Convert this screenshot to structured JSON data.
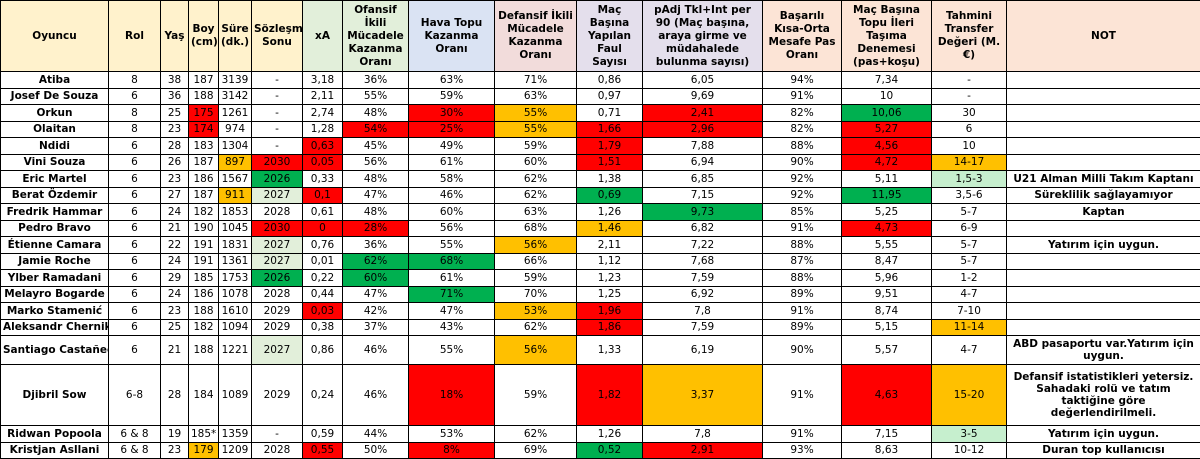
{
  "headers": [
    {
      "label": "Oyuncu",
      "bg": "#fff2cc"
    },
    {
      "label": "Rol",
      "bg": "#fff2cc"
    },
    {
      "label": "Yaş",
      "bg": "#fff2cc"
    },
    {
      "label": "Boy (cm)",
      "bg": "#fff2cc"
    },
    {
      "label": "Süre (dk.)",
      "bg": "#fff2cc"
    },
    {
      "label": "Sözleşme Sonu",
      "bg": "#fff2cc"
    },
    {
      "label": "xA",
      "bg": "#e2efda"
    },
    {
      "label": "Ofansif İkili Mücadele Kazanma Oranı",
      "bg": "#e2efda"
    },
    {
      "label": "Hava Topu Kazanma Oranı",
      "bg": "#dae3f3"
    },
    {
      "label": "Defansif İkili Mücadele Kazanma Oranı",
      "bg": "#f2dcdb"
    },
    {
      "label": "Maç Başına Yapılan Faul Sayısı",
      "bg": "#e4dfec"
    },
    {
      "label": "pAdj Tkl+Int per 90 (Maç başına, araya girme ve müdahalede bulunma sayısı)",
      "bg": "#e4dfec"
    },
    {
      "label": "Başarılı Kısa-Orta Mesafe Pas Oranı",
      "bg": "#fce4d6"
    },
    {
      "label": "Maç Başına Topu İleri Taşıma Denemesi (pas+koşu)",
      "bg": "#fce4d6"
    },
    {
      "label": "Tahmini Transfer Değeri (M. €)",
      "bg": "#fce4d6"
    },
    {
      "label": "NOT",
      "bg": "#fce4d6"
    }
  ],
  "rows": [
    {
      "h": "n",
      "cells": [
        "Atiba",
        "8",
        "38",
        "187",
        "3139",
        "-",
        "3,18",
        "36%",
        "63%",
        "71%",
        "0,86",
        "6,05",
        "94%",
        "7,34",
        "-",
        ""
      ],
      "cls": [
        "",
        "",
        "",
        "",
        "",
        "",
        "",
        "",
        "",
        "",
        "",
        "",
        "",
        "",
        "",
        ""
      ]
    },
    {
      "h": "n",
      "cells": [
        "Josef De Souza",
        "6",
        "36",
        "188",
        "3142",
        "-",
        "2,11",
        "55%",
        "59%",
        "63%",
        "0,97",
        "9,69",
        "91%",
        "10",
        "-",
        ""
      ],
      "cls": [
        "",
        "",
        "",
        "",
        "",
        "",
        "",
        "",
        "",
        "",
        "",
        "",
        "",
        "",
        "",
        ""
      ]
    },
    {
      "h": "n",
      "cells": [
        "Orkun",
        "8",
        "25",
        "175",
        "1261",
        "-",
        "2,74",
        "48%",
        "30%",
        "55%",
        "0,71",
        "2,41",
        "82%",
        "10,06",
        "30",
        ""
      ],
      "cls": [
        "",
        "",
        "",
        "r",
        "",
        "",
        "",
        "",
        "r",
        "o",
        "",
        "r",
        "",
        "g",
        "",
        ""
      ]
    },
    {
      "h": "n",
      "cells": [
        "Olaitan",
        "8",
        "23",
        "174",
        "974",
        "-",
        "1,28",
        "54%",
        "25%",
        "55%",
        "1,66",
        "2,96",
        "82%",
        "5,27",
        "6",
        ""
      ],
      "cls": [
        "",
        "",
        "",
        "r",
        "",
        "",
        "",
        "r",
        "r",
        "o",
        "r",
        "r",
        "",
        "r",
        "",
        ""
      ]
    },
    {
      "h": "n",
      "cells": [
        "Ndidi",
        "6",
        "28",
        "183",
        "1304",
        "-",
        "0,63",
        "45%",
        "49%",
        "59%",
        "1,79",
        "7,88",
        "88%",
        "4,56",
        "10",
        ""
      ],
      "cls": [
        "",
        "",
        "",
        "",
        "",
        "",
        "r",
        "",
        "",
        "",
        "r",
        "",
        "",
        "r",
        "",
        ""
      ]
    },
    {
      "h": "n",
      "cells": [
        "Vini Souza",
        "6",
        "26",
        "187",
        "897",
        "2030",
        "0,05",
        "56%",
        "61%",
        "60%",
        "1,51",
        "6,94",
        "90%",
        "4,72",
        "14-17",
        ""
      ],
      "cls": [
        "",
        "",
        "",
        "",
        "o",
        "r",
        "r",
        "",
        "",
        "",
        "r",
        "",
        "",
        "r",
        "o",
        ""
      ]
    },
    {
      "h": "n",
      "cells": [
        "Eric Martel",
        "6",
        "23",
        "186",
        "1567",
        "2026",
        "0,33",
        "48%",
        "58%",
        "62%",
        "1,38",
        "6,85",
        "92%",
        "5,11",
        "1,5-3",
        "U21 Alman Milli Takım Kaptanı"
      ],
      "cls": [
        "",
        "",
        "",
        "",
        "",
        "g",
        "",
        "",
        "",
        "",
        "",
        "",
        "",
        "",
        "lg",
        ""
      ]
    },
    {
      "h": "n",
      "cells": [
        "Berat Özdemir",
        "6",
        "27",
        "187",
        "911",
        "2027",
        "0,1",
        "47%",
        "46%",
        "62%",
        "0,69",
        "7,15",
        "92%",
        "11,95",
        "3,5-6",
        "Süreklilik sağlayamıyor"
      ],
      "cls": [
        "",
        "",
        "",
        "",
        "o",
        "gy",
        "r",
        "",
        "",
        "",
        "g",
        "",
        "",
        "g",
        "",
        ""
      ]
    },
    {
      "h": "n",
      "cells": [
        "Fredrik Hammar",
        "6",
        "24",
        "182",
        "1853",
        "2028",
        "0,61",
        "48%",
        "60%",
        "63%",
        "1,26",
        "9,73",
        "85%",
        "5,25",
        "5-7",
        "Kaptan"
      ],
      "cls": [
        "",
        "",
        "",
        "",
        "",
        "",
        "",
        "",
        "",
        "",
        "",
        "g",
        "",
        "",
        "",
        ""
      ]
    },
    {
      "h": "n",
      "cells": [
        "Pedro Bravo",
        "6",
        "21",
        "190",
        "1045",
        "2030",
        "0",
        "28%",
        "56%",
        "68%",
        "1,46",
        "6,82",
        "91%",
        "4,73",
        "6-9",
        ""
      ],
      "cls": [
        "",
        "",
        "",
        "",
        "",
        "r",
        "r",
        "r",
        "",
        "",
        "o",
        "",
        "",
        "r",
        "",
        ""
      ]
    },
    {
      "h": "n",
      "cells": [
        "Étienne Camara",
        "6",
        "22",
        "191",
        "1831",
        "2027",
        "0,76",
        "36%",
        "55%",
        "56%",
        "2,11",
        "7,22",
        "88%",
        "5,55",
        "5-7",
        "Yatırım için uygun."
      ],
      "cls": [
        "",
        "",
        "",
        "",
        "",
        "gy",
        "",
        "",
        "",
        "o",
        "",
        "",
        "",
        "",
        "",
        ""
      ]
    },
    {
      "h": "n",
      "cells": [
        "Jamie Roche",
        "6",
        "24",
        "191",
        "1361",
        "2027",
        "0,01",
        "62%",
        "68%",
        "66%",
        "1,12",
        "7,68",
        "87%",
        "8,47",
        "5-7",
        ""
      ],
      "cls": [
        "",
        "",
        "",
        "",
        "",
        "gy",
        "",
        "g",
        "g",
        "",
        "",
        "",
        "",
        "",
        "",
        ""
      ]
    },
    {
      "h": "n",
      "cells": [
        "Ylber Ramadani",
        "6",
        "29",
        "185",
        "1753",
        "2026",
        "0,22",
        "60%",
        "61%",
        "59%",
        "1,23",
        "7,59",
        "88%",
        "5,96",
        "1-2",
        ""
      ],
      "cls": [
        "",
        "",
        "",
        "",
        "",
        "g",
        "",
        "g",
        "",
        "",
        "",
        "",
        "",
        "",
        "",
        ""
      ]
    },
    {
      "h": "n",
      "cells": [
        "Melayro Bogarde",
        "6",
        "24",
        "186",
        "1078",
        "2028",
        "0,44",
        "47%",
        "71%",
        "70%",
        "1,25",
        "6,92",
        "89%",
        "9,51",
        "4-7",
        ""
      ],
      "cls": [
        "",
        "",
        "",
        "",
        "",
        "",
        "",
        "",
        "g",
        "",
        "",
        "",
        "",
        "",
        "",
        ""
      ]
    },
    {
      "h": "n",
      "cells": [
        "Marko Stamenić",
        "6",
        "23",
        "188",
        "1610",
        "2029",
        "0,03",
        "42%",
        "47%",
        "53%",
        "1,96",
        "7,8",
        "91%",
        "8,74",
        "7-10",
        ""
      ],
      "cls": [
        "",
        "",
        "",
        "",
        "",
        "",
        "r",
        "",
        "",
        "o",
        "r",
        "",
        "",
        "",
        "",
        ""
      ]
    },
    {
      "h": "n",
      "cells": [
        "Aleksandr Chernikov",
        "6",
        "25",
        "182",
        "1094",
        "2029",
        "0,38",
        "37%",
        "43%",
        "62%",
        "1,86",
        "7,59",
        "89%",
        "5,15",
        "11-14",
        ""
      ],
      "cls": [
        "",
        "",
        "",
        "",
        "",
        "",
        "",
        "",
        "",
        "",
        "r",
        "",
        "",
        "",
        "o",
        ""
      ]
    },
    {
      "h": "t2",
      "cells": [
        "Santiago Castañeda",
        "6",
        "21",
        "188",
        "1221",
        "2027",
        "0,86",
        "46%",
        "55%",
        "56%",
        "1,33",
        "6,19",
        "90%",
        "5,57",
        "4-7",
        "ABD pasaportu var.Yatırım için uygun."
      ],
      "cls": [
        "",
        "",
        "",
        "",
        "",
        "gy",
        "",
        "",
        "",
        "o",
        "",
        "",
        "",
        "",
        "",
        ""
      ]
    },
    {
      "h": "t4",
      "cells": [
        "Djibril Sow",
        "6-8",
        "28",
        "184",
        "1089",
        "2029",
        "0,24",
        "46%",
        "18%",
        "59%",
        "1,82",
        "3,37",
        "91%",
        "4,63",
        "15-20",
        "Defansif istatistikleri yetersiz. Sahadaki rolü ve tatım taktiğine göre değerlendirilmeli."
      ],
      "cls": [
        "",
        "",
        "",
        "",
        "",
        "",
        "",
        "",
        "r",
        "",
        "r",
        "o",
        "",
        "r",
        "o",
        ""
      ]
    },
    {
      "h": "n",
      "cells": [
        "Ridwan Popoola",
        "6 & 8",
        "19",
        "185*",
        "1359",
        "-",
        "0,59",
        "44%",
        "53%",
        "62%",
        "1,26",
        "7,8",
        "91%",
        "7,15",
        "3-5",
        "Yatırım için uygun."
      ],
      "cls": [
        "",
        "",
        "",
        "",
        "",
        "",
        "",
        "",
        "",
        "",
        "",
        "",
        "",
        "",
        "lg",
        ""
      ]
    },
    {
      "h": "n",
      "cells": [
        "Kristjan Asllani",
        "6 & 8",
        "23",
        "179",
        "1209",
        "2028",
        "0,55",
        "50%",
        "8%",
        "69%",
        "0,52",
        "2,91",
        "93%",
        "8,63",
        "10-12",
        "Duran top kullanıcısı"
      ],
      "cls": [
        "",
        "",
        "",
        "o",
        "",
        "",
        "r",
        "",
        "r",
        "",
        "g",
        "r",
        "",
        "",
        "",
        ""
      ]
    }
  ]
}
